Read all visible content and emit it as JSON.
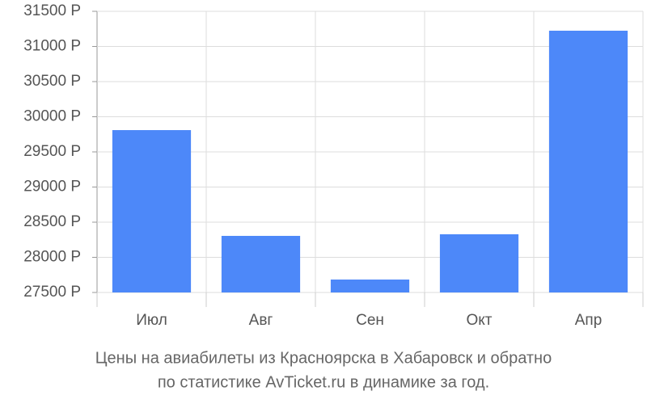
{
  "chart_data": {
    "type": "bar",
    "title": [
      "Цены на авиабилеты из Красноярска в Хабаровск и обратно",
      "по статистике AvTicket.ru в динамике за год."
    ],
    "categories": [
      "Июл",
      "Авг",
      "Сен",
      "Окт",
      "Апр"
    ],
    "values": [
      29810,
      28305,
      27684,
      28328,
      31224
    ],
    "color": "#4d88f9",
    "ylim": [
      27500,
      31500
    ],
    "yticks": [
      {
        "value": 27500,
        "label": "27500 Р"
      },
      {
        "value": 28000,
        "label": "28000 Р"
      },
      {
        "value": 28500,
        "label": "28500 Р"
      },
      {
        "value": 29000,
        "label": "29000 Р"
      },
      {
        "value": 29500,
        "label": "29500 Р"
      },
      {
        "value": 30000,
        "label": "30000 Р"
      },
      {
        "value": 30500,
        "label": "30500 Р"
      },
      {
        "value": 31000,
        "label": "31000 Р"
      },
      {
        "value": 31500,
        "label": "31500 Р"
      }
    ],
    "grid": true
  }
}
